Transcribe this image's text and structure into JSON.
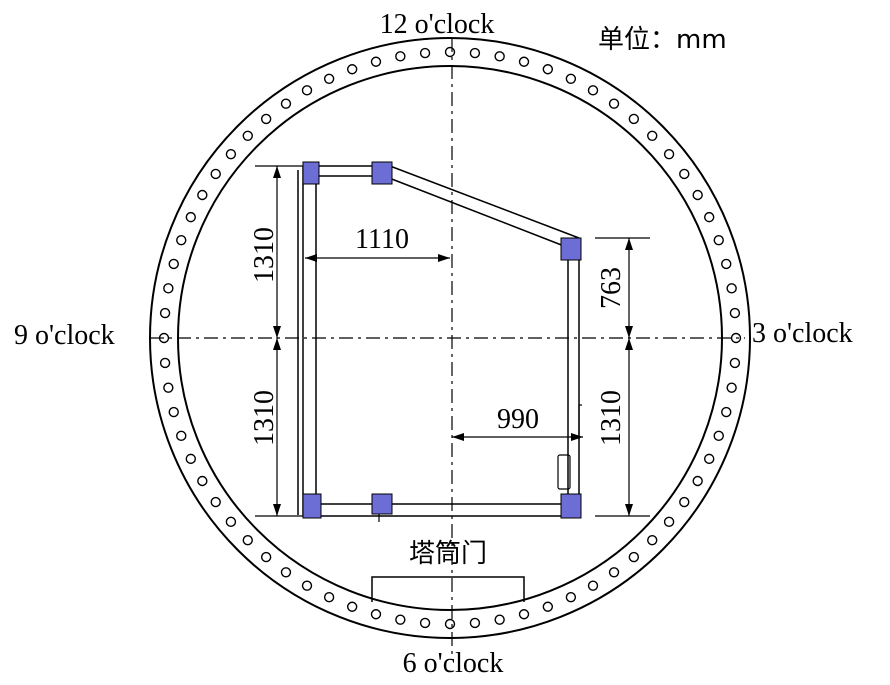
{
  "diagram": {
    "unit_label": "单位：mm",
    "clock": {
      "top": "12 o'clock",
      "right": "3 o'clock",
      "bottom": "6 o'clock",
      "left": "9 o'clock"
    },
    "dimensions": {
      "left_upper_height": "1310",
      "left_lower_height": "1310",
      "left_width": "1110",
      "right_upper_height": "763",
      "right_lower_height": "1310",
      "right_width": "990"
    },
    "door_label": "塔筒门",
    "colors": {
      "line": "#000000",
      "bracket": "#6d6dd6"
    }
  }
}
